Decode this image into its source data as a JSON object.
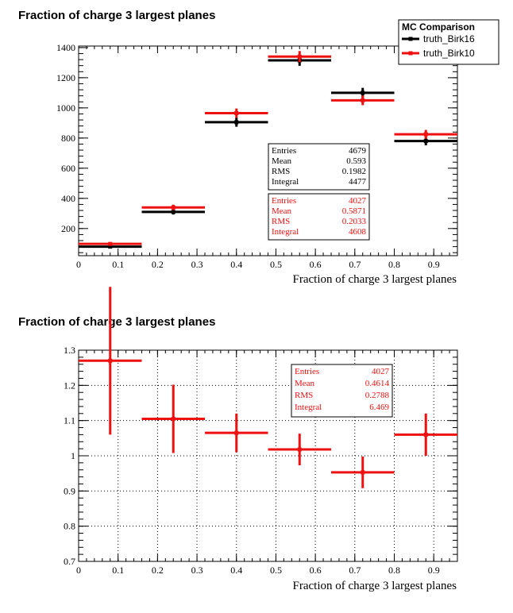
{
  "colors": {
    "black_series": "#000000",
    "red_series": "#ee1111",
    "grid": "#000000"
  },
  "legend": {
    "title": "MC Comparison",
    "entries": [
      {
        "label": "truth_Birk16",
        "color": "#000000"
      },
      {
        "label": "truth_Birk10",
        "color": "#ee1111"
      }
    ]
  },
  "chart_data": [
    {
      "type": "histogram",
      "title": "Fraction of charge 3 largest planes",
      "xlabel": "Fraction of charge 3 largest planes",
      "ylabel": "",
      "xlim": [
        0,
        0.96
      ],
      "ylim": [
        20,
        1410
      ],
      "xticks": [
        0,
        0.1,
        0.2,
        0.3,
        0.4,
        0.5,
        0.6,
        0.7,
        0.8,
        0.9
      ],
      "xtick_labels": [
        "0",
        "0.1",
        "0.2",
        "0.3",
        "0.4",
        "0.5",
        "0.6",
        "0.7",
        "0.8",
        "0.9"
      ],
      "yticks": [
        200,
        400,
        600,
        800,
        1000,
        1200,
        1400
      ],
      "ytick_labels": [
        "200",
        "400",
        "600",
        "800",
        "1000",
        "1200",
        "1400"
      ],
      "grid": false,
      "bins": [
        [
          0,
          0.16
        ],
        [
          0.16,
          0.32
        ],
        [
          0.32,
          0.48
        ],
        [
          0.48,
          0.64
        ],
        [
          0.64,
          0.8
        ],
        [
          0.8,
          0.96
        ]
      ],
      "series": [
        {
          "name": "truth_Birk16",
          "color": "#000000",
          "values": [
            80,
            310,
            905,
            1315,
            1100,
            780
          ],
          "errors": [
            9,
            17,
            30,
            36,
            33,
            28
          ]
        },
        {
          "name": "truth_Birk10",
          "color": "#ee1111",
          "values": [
            98,
            340,
            965,
            1340,
            1050,
            825
          ],
          "errors": [
            10,
            18,
            31,
            37,
            32,
            29
          ]
        }
      ],
      "stats": [
        {
          "color": "#000000",
          "rows": [
            {
              "label": "Entries",
              "value": "4679"
            },
            {
              "label": "Mean",
              "value": "0.593"
            },
            {
              "label": "RMS",
              "value": "0.1982"
            },
            {
              "label": "Integral",
              "value": "4477"
            }
          ]
        },
        {
          "color": "#ee1111",
          "rows": [
            {
              "label": "Entries",
              "value": "4027"
            },
            {
              "label": "Mean",
              "value": "0.5871"
            },
            {
              "label": "RMS",
              "value": "0.2033"
            },
            {
              "label": "Integral",
              "value": "4608"
            }
          ]
        }
      ]
    },
    {
      "type": "histogram",
      "title": "Fraction of charge 3 largest planes",
      "xlabel": "Fraction of charge 3 largest planes",
      "ylabel": "",
      "xlim": [
        0,
        0.96
      ],
      "ylim": [
        0.7,
        1.3
      ],
      "xticks": [
        0,
        0.1,
        0.2,
        0.3,
        0.4,
        0.5,
        0.6,
        0.7,
        0.8,
        0.9
      ],
      "xtick_labels": [
        "0",
        "0.1",
        "0.2",
        "0.3",
        "0.4",
        "0.5",
        "0.6",
        "0.7",
        "0.8",
        "0.9"
      ],
      "yticks": [
        0.7,
        0.8,
        0.9,
        1.0,
        1.1,
        1.2,
        1.3
      ],
      "ytick_labels": [
        "0.7",
        "0.8",
        "0.9",
        "1",
        "1.1",
        "1.2",
        "1.3"
      ],
      "grid": true,
      "bins": [
        [
          0,
          0.16
        ],
        [
          0.16,
          0.32
        ],
        [
          0.32,
          0.48
        ],
        [
          0.48,
          0.64
        ],
        [
          0.64,
          0.8
        ],
        [
          0.8,
          0.96
        ]
      ],
      "series": [
        {
          "name": "",
          "color": "#ee1111",
          "values": [
            1.27,
            1.105,
            1.065,
            1.018,
            0.953,
            1.06
          ],
          "errors": [
            0.21,
            0.097,
            0.055,
            0.045,
            0.045,
            0.06
          ]
        }
      ],
      "stats": [
        {
          "color": "#ee1111",
          "rows": [
            {
              "label": "Entries",
              "value": "4027"
            },
            {
              "label": "Mean",
              "value": "0.4614"
            },
            {
              "label": "RMS",
              "value": "0.2788"
            },
            {
              "label": "Integral",
              "value": "6.469"
            }
          ]
        }
      ]
    }
  ]
}
